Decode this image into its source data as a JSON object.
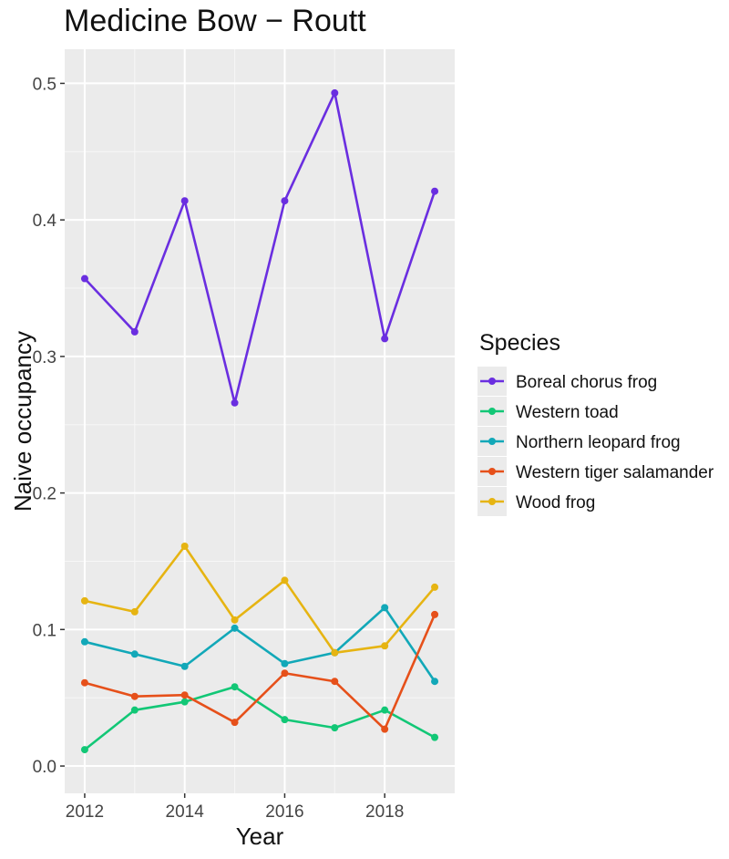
{
  "chart_data": {
    "type": "line",
    "title": "Medicine Bow − Routt",
    "xlabel": "Year",
    "ylabel": "Naive occupancy",
    "x": [
      2012,
      2013,
      2014,
      2015,
      2016,
      2017,
      2018,
      2019
    ],
    "xlim": [
      2011.6,
      2019.4
    ],
    "ylim": [
      -0.02,
      0.525
    ],
    "x_ticks": [
      2012,
      2014,
      2016,
      2018
    ],
    "x_tick_labels": [
      "2012",
      "2014",
      "2016",
      "2018"
    ],
    "y_ticks": [
      0.0,
      0.1,
      0.2,
      0.3,
      0.4,
      0.5
    ],
    "y_tick_labels": [
      "0.0",
      "0.1",
      "0.2",
      "0.3",
      "0.4",
      "0.5"
    ],
    "grid": true,
    "legend": {
      "title": "Species",
      "placement": "right"
    },
    "series": [
      {
        "name": "Boreal chorus frog",
        "color": "#6a2ee0",
        "values": [
          0.357,
          0.318,
          0.414,
          0.266,
          0.414,
          0.493,
          0.313,
          0.421
        ]
      },
      {
        "name": "Western toad",
        "color": "#12c776",
        "values": [
          0.012,
          0.041,
          0.047,
          0.058,
          0.034,
          0.028,
          0.041,
          0.021
        ]
      },
      {
        "name": "Northern leopard frog",
        "color": "#12a8b8",
        "values": [
          0.091,
          0.082,
          0.073,
          0.101,
          0.075,
          0.083,
          0.116,
          0.062
        ]
      },
      {
        "name": "Western tiger salamander",
        "color": "#e6501a",
        "values": [
          0.061,
          0.051,
          0.052,
          0.032,
          0.068,
          0.062,
          0.027,
          0.111
        ]
      },
      {
        "name": "Wood frog",
        "color": "#e6b412",
        "values": [
          0.121,
          0.113,
          0.161,
          0.107,
          0.136,
          0.083,
          0.088,
          0.131
        ]
      }
    ]
  }
}
